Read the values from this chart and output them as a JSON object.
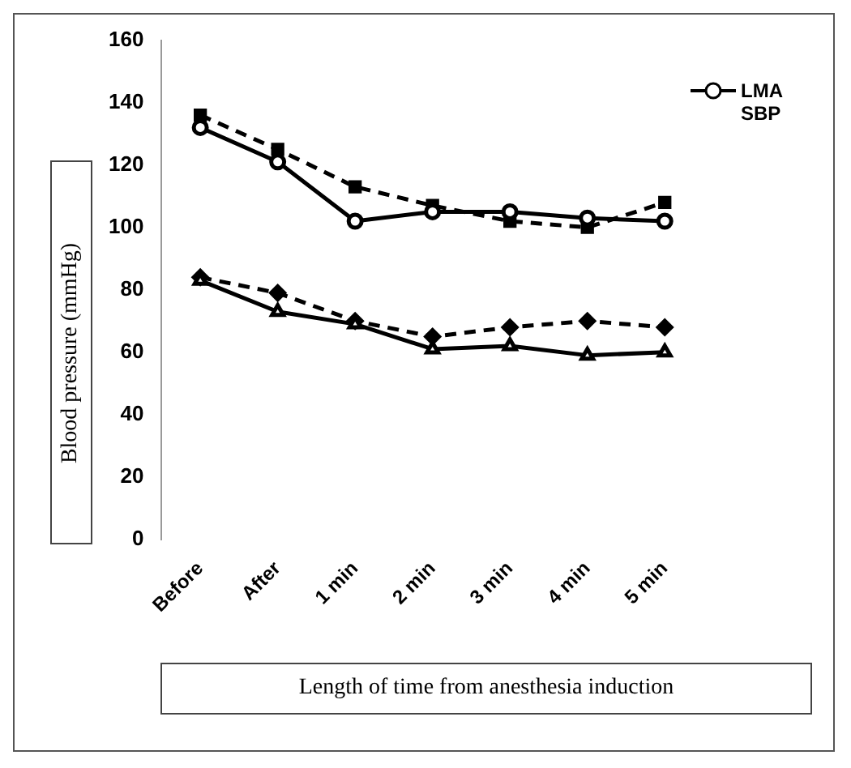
{
  "chart_data": {
    "type": "line",
    "xlabel": "Length of time from anesthesia induction",
    "ylabel": "Blood pressure (mmHg)",
    "categories": [
      "Before",
      "After",
      "1 min",
      "2 min",
      "3 min",
      "4 min",
      "5 min"
    ],
    "series": [
      {
        "name": "LMA SBP",
        "color": "#000000",
        "marker": "circle",
        "line_style": "solid",
        "values": [
          132,
          121,
          102,
          105,
          105,
          103,
          102
        ]
      },
      {
        "color": "#000000",
        "marker": "square",
        "line_style": "dashed",
        "values": [
          136,
          125,
          113,
          107,
          102,
          100,
          108
        ]
      },
      {
        "color": "#000000",
        "marker": "triangle",
        "line_style": "solid",
        "values": [
          83,
          73,
          69,
          61,
          62,
          59,
          60
        ]
      },
      {
        "color": "#000000",
        "marker": "diamond",
        "line_style": "dashed",
        "values": [
          84,
          79,
          70,
          65,
          68,
          70,
          68
        ]
      }
    ],
    "ylim": [
      0,
      160
    ],
    "yticks": [
      0,
      20,
      40,
      60,
      80,
      100,
      120,
      140,
      160
    ],
    "grid": false,
    "legend": "top right"
  }
}
